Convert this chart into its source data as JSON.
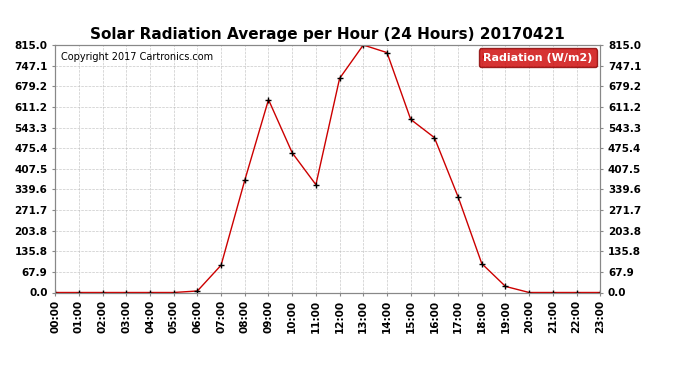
{
  "title": "Solar Radiation Average per Hour (24 Hours) 20170421",
  "copyright_text": "Copyright 2017 Cartronics.com",
  "legend_label": "Radiation (W/m2)",
  "hours": [
    "00:00",
    "01:00",
    "02:00",
    "03:00",
    "04:00",
    "05:00",
    "06:00",
    "07:00",
    "08:00",
    "09:00",
    "10:00",
    "11:00",
    "12:00",
    "13:00",
    "14:00",
    "15:00",
    "16:00",
    "17:00",
    "18:00",
    "19:00",
    "20:00",
    "21:00",
    "22:00",
    "23:00"
  ],
  "values": [
    0.0,
    0.0,
    0.0,
    0.0,
    0.0,
    0.0,
    5.0,
    90.0,
    370.0,
    635.0,
    460.0,
    355.0,
    705.0,
    815.0,
    790.0,
    570.0,
    510.0,
    315.0,
    95.0,
    20.0,
    0.0,
    0.0,
    0.0,
    0.0
  ],
  "yticks": [
    0.0,
    67.9,
    135.8,
    203.8,
    271.7,
    339.6,
    407.5,
    475.4,
    543.3,
    611.2,
    679.2,
    747.1,
    815.0
  ],
  "line_color": "#cc0000",
  "marker_color": "#000000",
  "bg_color": "#ffffff",
  "grid_color": "#bbbbbb",
  "legend_bg": "#cc0000",
  "legend_text_color": "#ffffff",
  "title_fontsize": 11,
  "copyright_fontsize": 7,
  "tick_fontsize": 7.5,
  "legend_fontsize": 8
}
